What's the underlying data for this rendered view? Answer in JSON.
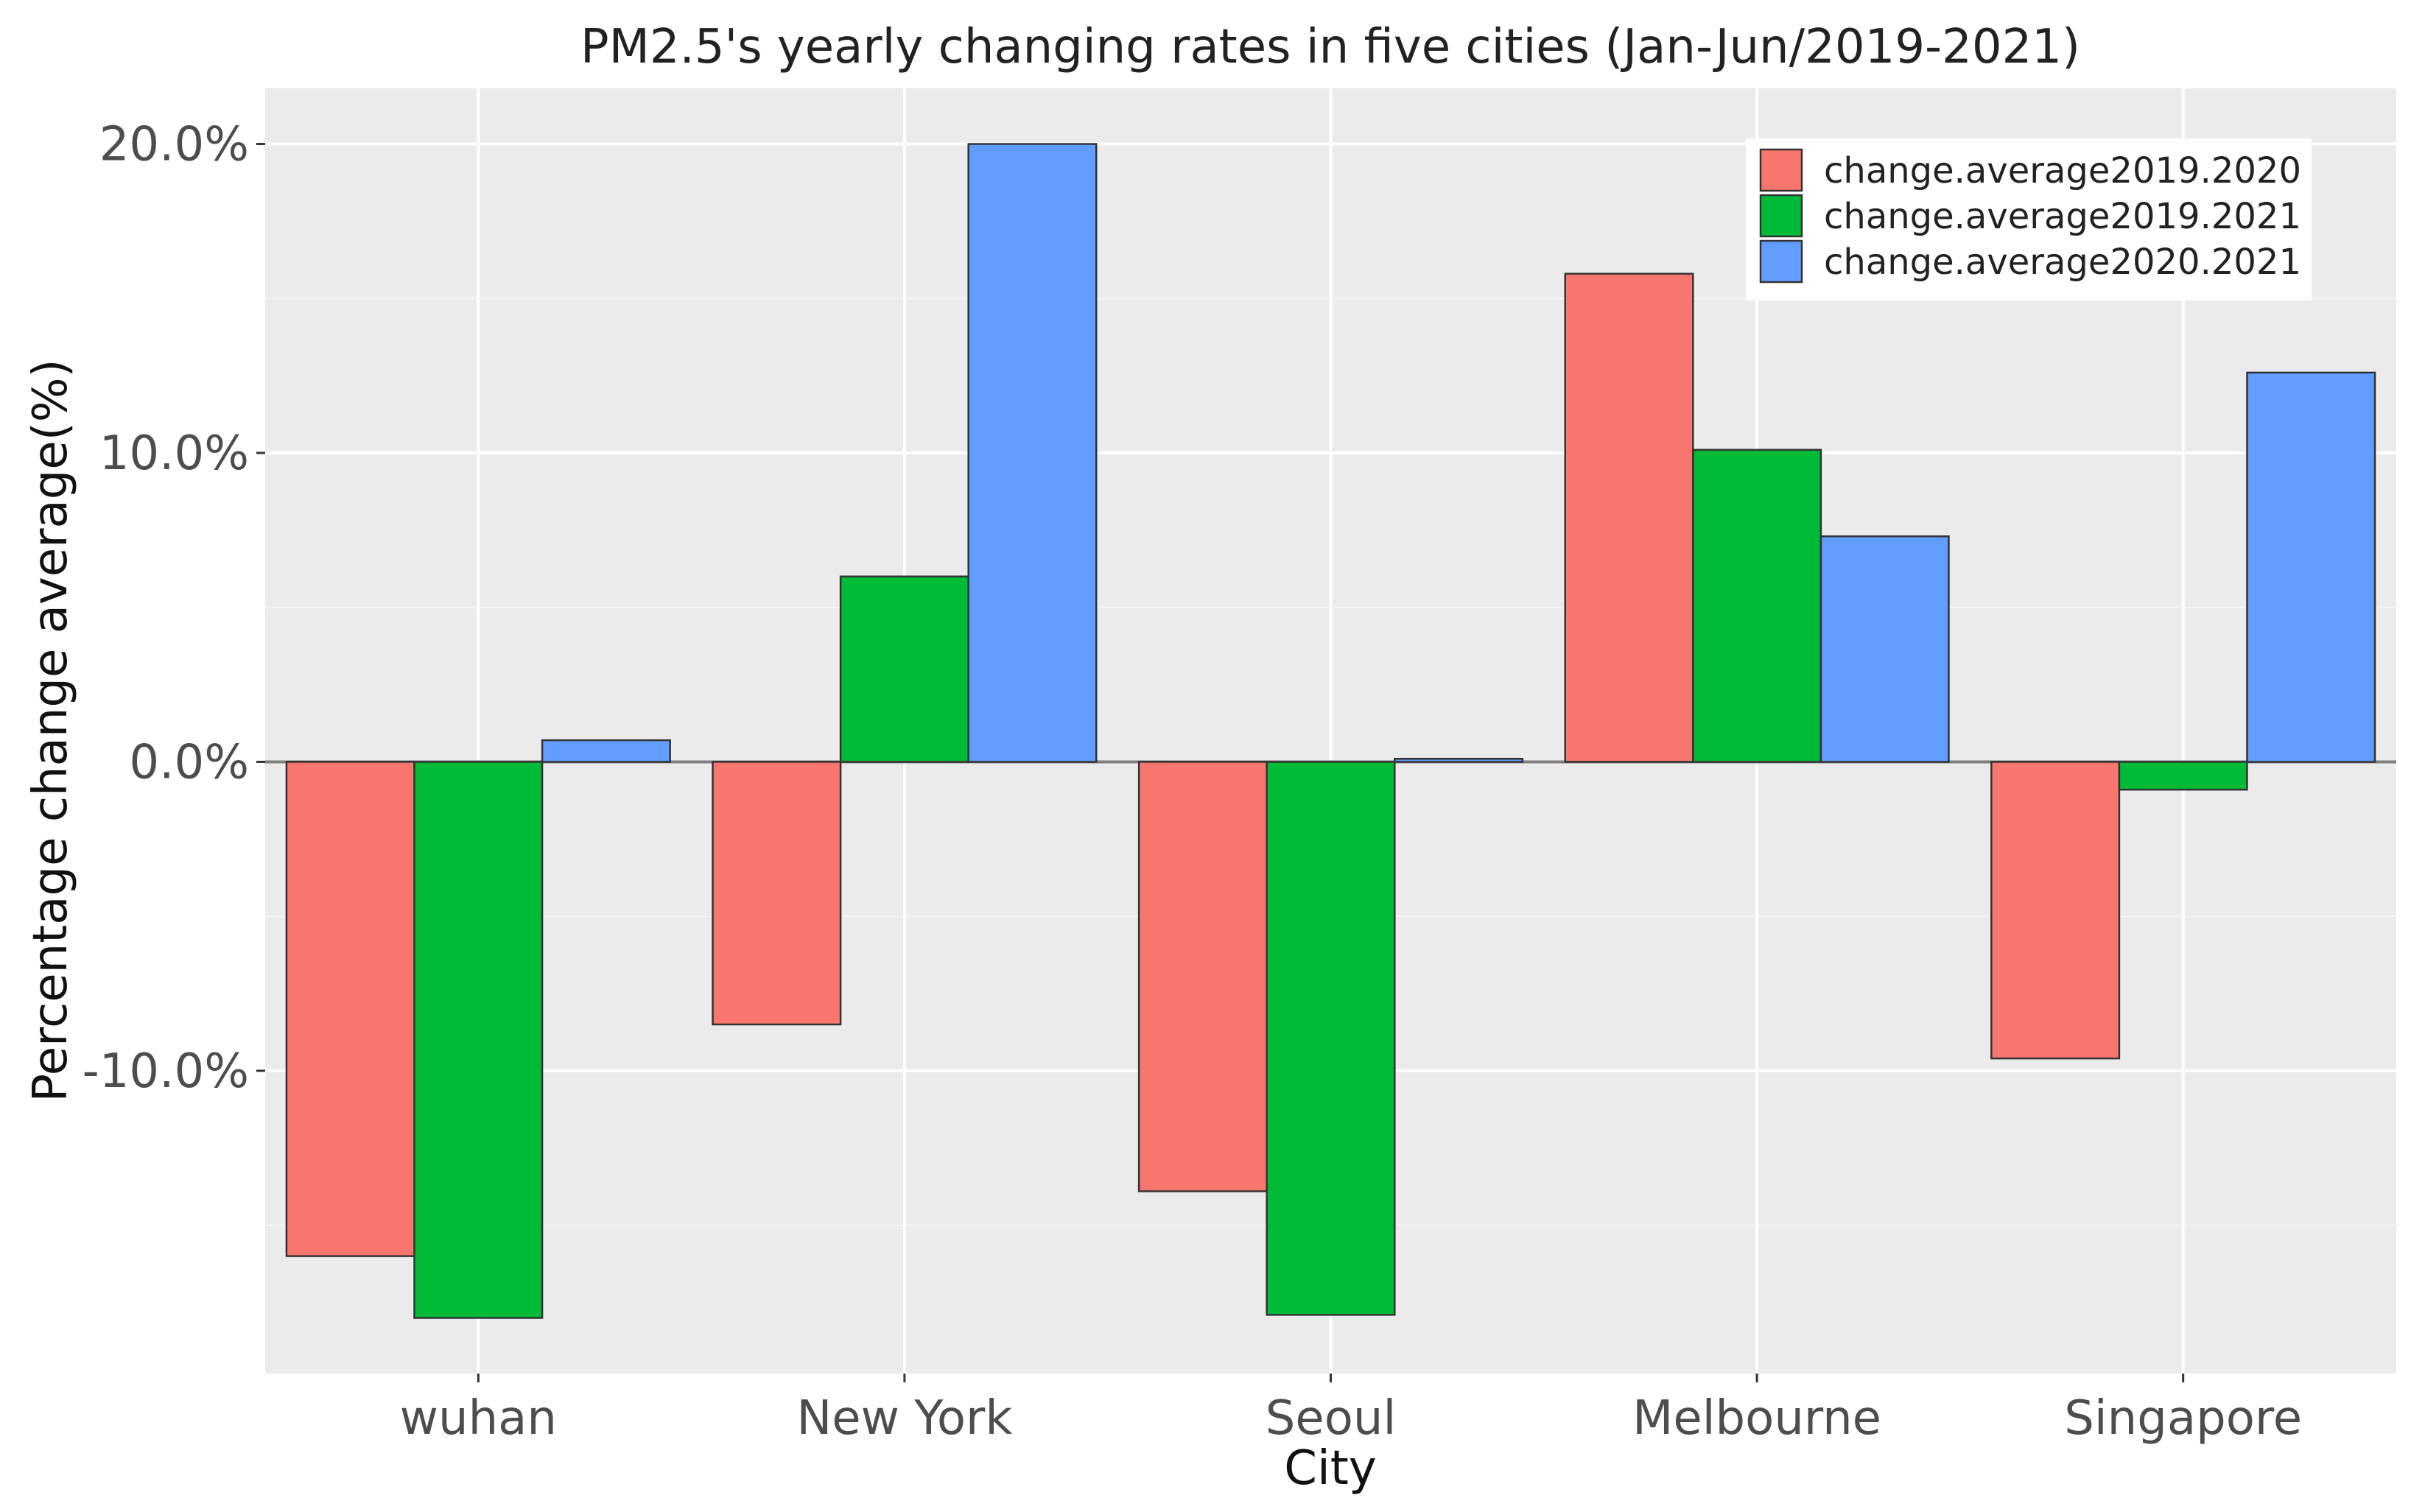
{
  "chart_data": {
    "type": "bar",
    "title": "PM2.5's yearly changing rates in five cities (Jan-Jun/2019-2021)",
    "xlabel": "City",
    "ylabel": "Percentage change average(%)",
    "categories": [
      "wuhan",
      "New York",
      "Seoul",
      "Melbourne",
      "Singapore"
    ],
    "series": [
      {
        "name": "change.average2019.2020",
        "color": "#F8766D",
        "values": [
          -16.0,
          -8.5,
          -13.9,
          15.8,
          -9.6
        ]
      },
      {
        "name": "change.average2019.2021",
        "color": "#00BA38",
        "values": [
          -18.0,
          6.0,
          -17.9,
          10.1,
          -0.9
        ]
      },
      {
        "name": "change.average2020.2021",
        "color": "#619CFF",
        "values": [
          0.7,
          20.0,
          0.1,
          7.3,
          12.6
        ]
      }
    ],
    "ylim": [
      -19.8,
      21.8
    ],
    "yticks": [
      -10,
      0,
      10,
      20
    ],
    "ytick_labels": [
      "-10.0%",
      "0.0%",
      "10.0%",
      "20.0%"
    ],
    "grid": true,
    "legend_position": "top-right",
    "panel_background": "#EBEBEB"
  }
}
